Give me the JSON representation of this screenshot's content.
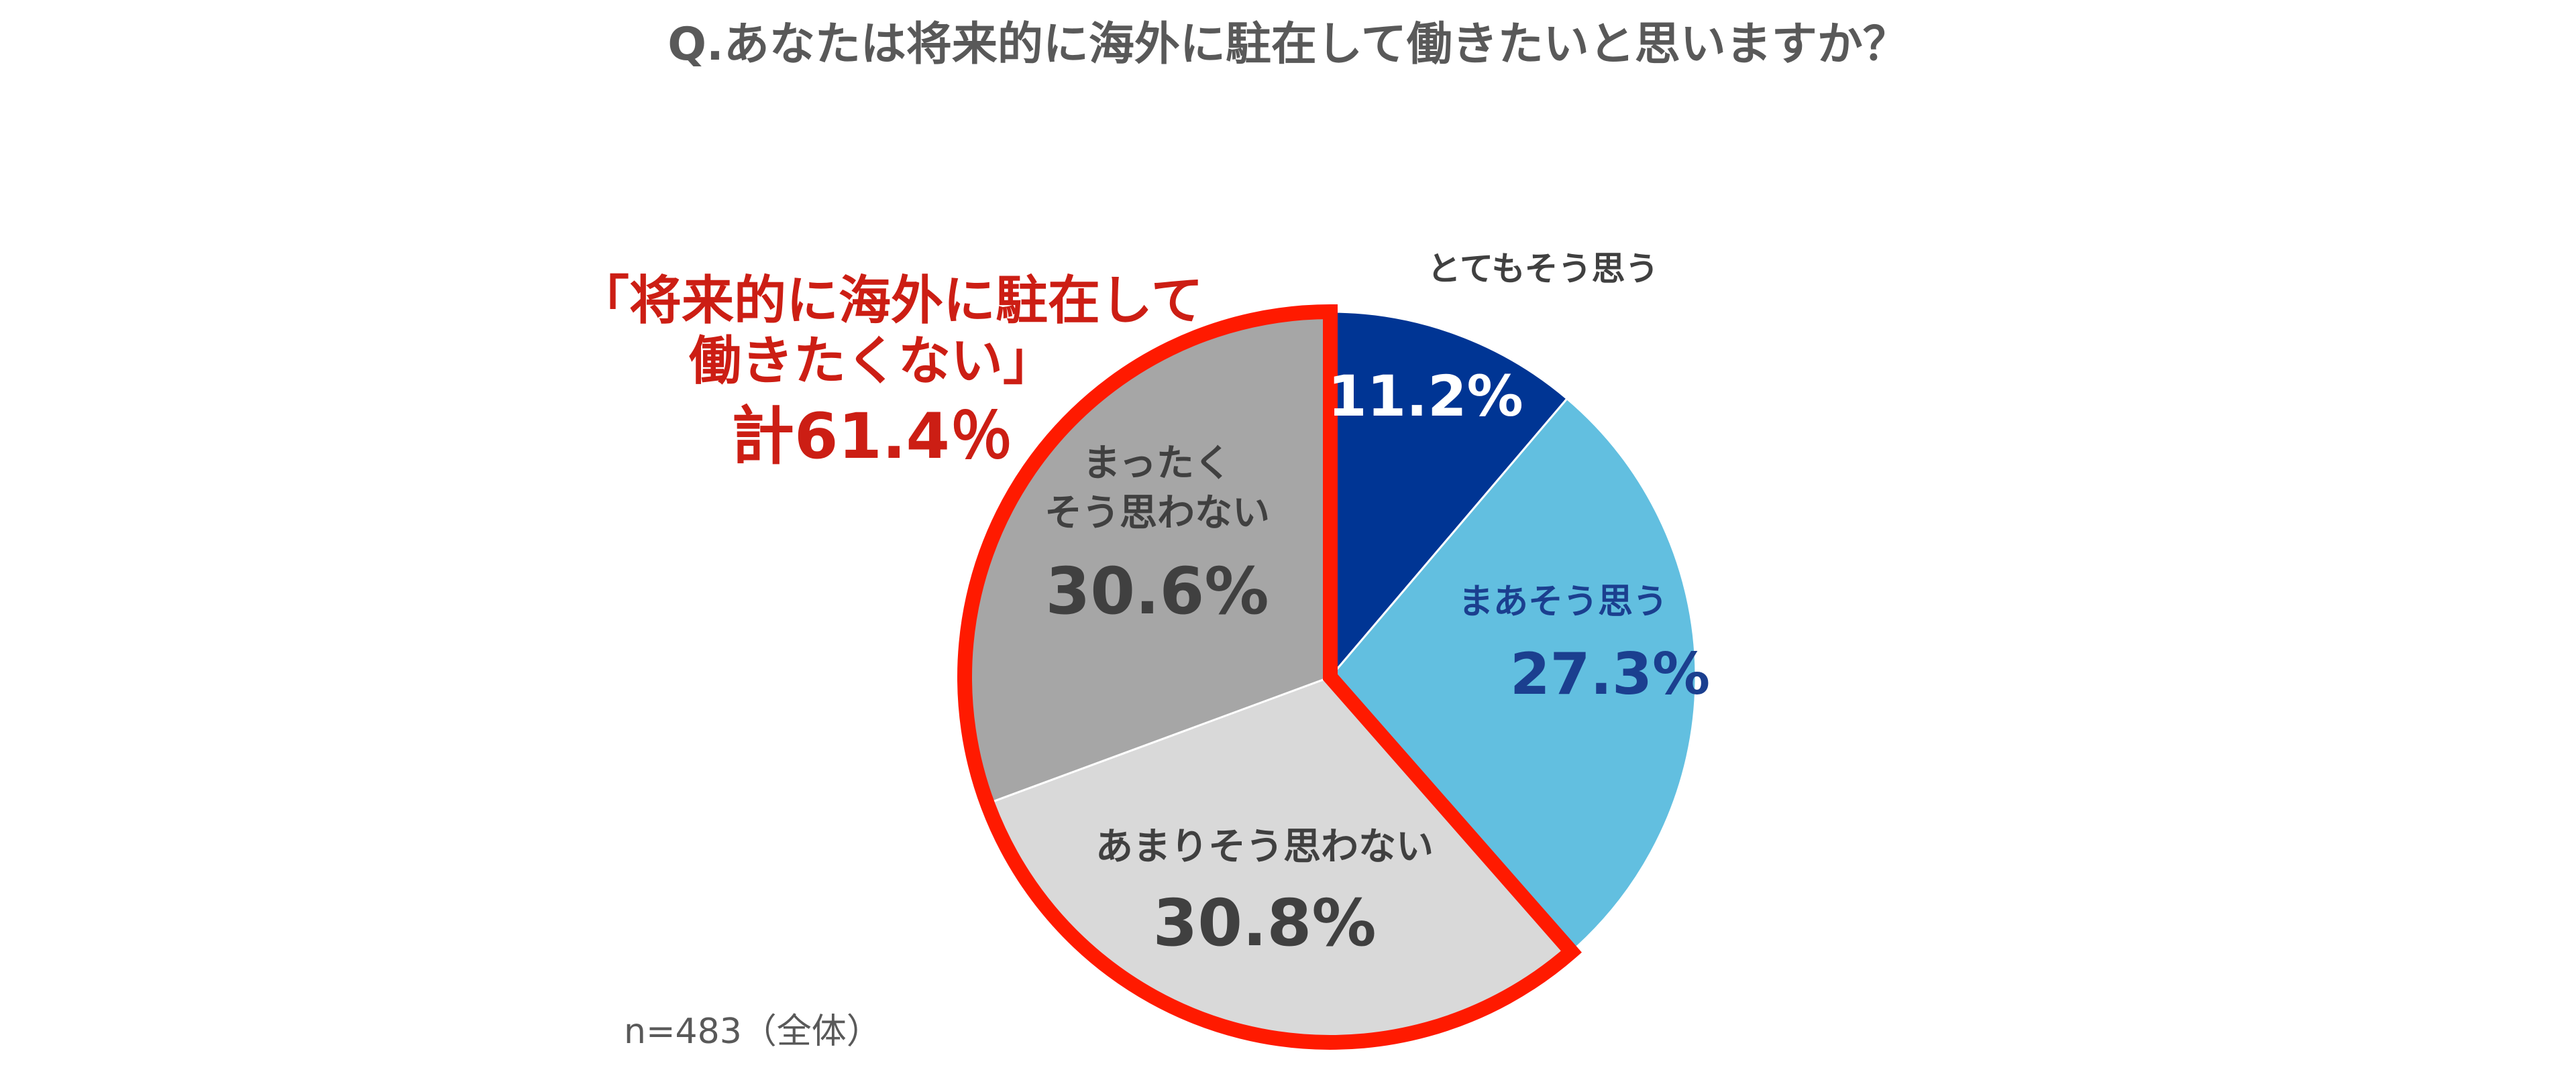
{
  "title": "Q.あなたは将来的に海外に駐在して働きたいと思いますか？",
  "callout": {
    "line1": "「将来的に海外に駐在して",
    "line2": "働きたくない」",
    "total": "計61.4％",
    "color": "#cc1e14"
  },
  "sample_note": "n=483（全体）",
  "chart_data": {
    "type": "pie",
    "start_angle_deg": 0,
    "direction": "clockwise",
    "slices": [
      {
        "label": "とてもそう思う",
        "label_lines": [
          "とてもそう思う"
        ],
        "value": 11.2,
        "value_label": "11.2%",
        "color": "#003594",
        "label_color": "#404040",
        "value_color": "#ffffff"
      },
      {
        "label": "まあそう思う",
        "label_lines": [
          "まあそう思う"
        ],
        "value": 27.3,
        "value_label": "27.3%",
        "color": "#62bfe0",
        "label_color": "#1b3f8f",
        "value_color": "#1b3f8f"
      },
      {
        "label": "あまりそう思わない",
        "label_lines": [
          "あまりそう思わない"
        ],
        "value": 30.8,
        "value_label": "30.8%",
        "color": "#d9d9d9",
        "label_color": "#404040",
        "value_color": "#404040"
      },
      {
        "label": "まったくそう思わない",
        "label_lines": [
          "まったく",
          "そう思わない"
        ],
        "value": 30.6,
        "value_label": "30.6%",
        "color": "#a6a6a6",
        "label_color": "#404040",
        "value_color": "#404040"
      }
    ],
    "highlight": {
      "slices": [
        "あまりそう思わない",
        "まったくそう思わない"
      ],
      "sum_label": "計61.4％",
      "color": "#ff1a00"
    }
  }
}
